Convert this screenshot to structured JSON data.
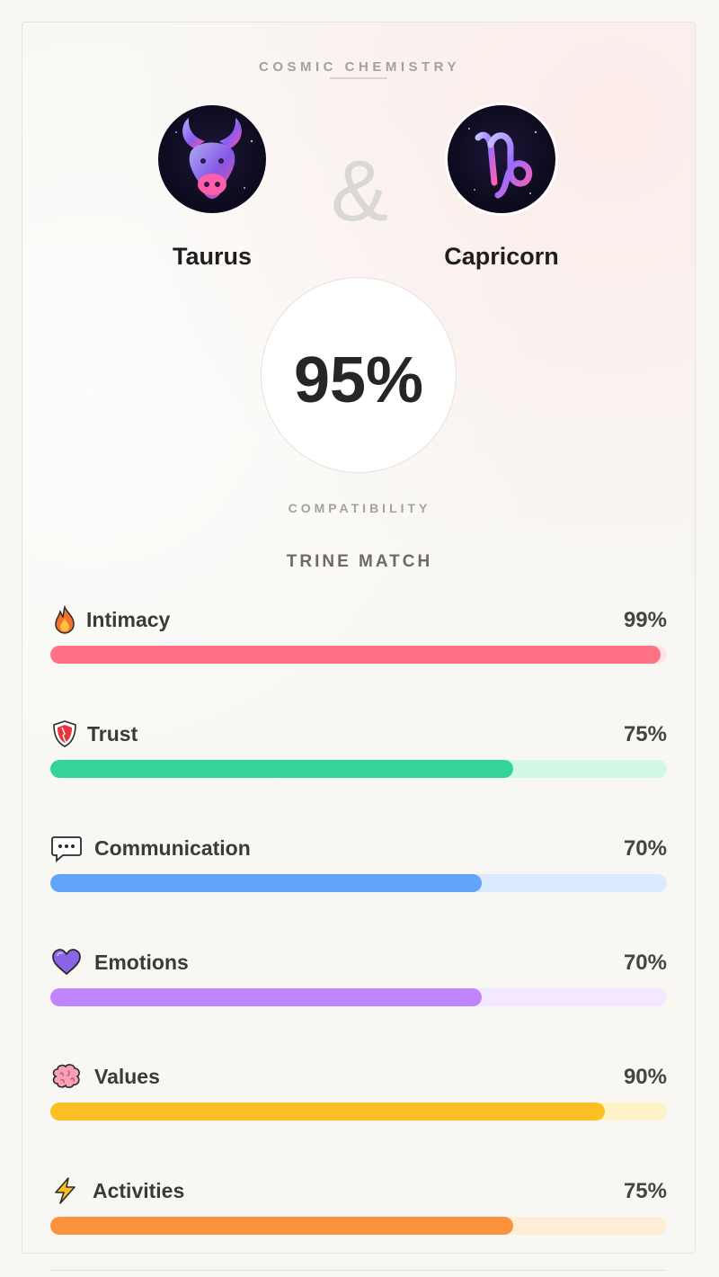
{
  "header": {
    "title": "COSMIC CHEMISTRY"
  },
  "signs": {
    "left": {
      "name": "Taurus",
      "icon": "taurus-bull-icon"
    },
    "connector": "&",
    "right": {
      "name": "Capricorn",
      "icon": "capricorn-glyph-icon"
    }
  },
  "score": {
    "value": "95%",
    "label": "COMPATIBILITY"
  },
  "match_type": "TRINE MATCH",
  "metrics": [
    {
      "label": "Intimacy",
      "value": "99%",
      "percent": 99,
      "icon": "fire-icon",
      "color": "#ff7185",
      "track": "#ffe4e8"
    },
    {
      "label": "Trust",
      "value": "75%",
      "percent": 75,
      "icon": "shield-icon",
      "color": "#34d399",
      "track": "#d1fae5"
    },
    {
      "label": "Communication",
      "value": "70%",
      "percent": 70,
      "icon": "speech-bubble-icon",
      "color": "#60a5fa",
      "track": "#dbeafe"
    },
    {
      "label": "Emotions",
      "value": "70%",
      "percent": 70,
      "icon": "purple-heart-icon",
      "color": "#c084fc",
      "track": "#f3e8ff"
    },
    {
      "label": "Values",
      "value": "90%",
      "percent": 90,
      "icon": "brain-icon",
      "color": "#fbbf24",
      "track": "#fef3c7"
    },
    {
      "label": "Activities",
      "value": "75%",
      "percent": 75,
      "icon": "lightning-icon",
      "color": "#fb923c",
      "track": "#ffedd5"
    }
  ]
}
